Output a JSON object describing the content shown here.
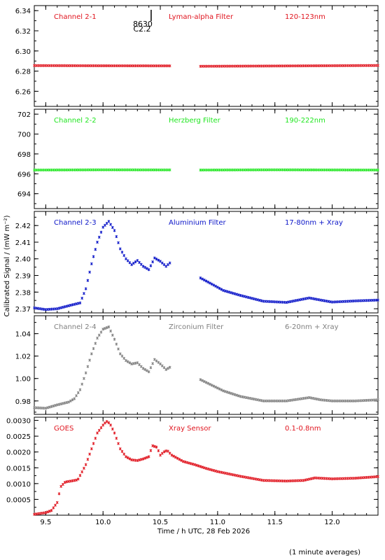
{
  "figure": {
    "ylabel": "Calibrated Signal / (mW m⁻²)",
    "xlabel": "Time / h UTC, 28 Feb 2026",
    "footnote": "(1 minute averages)",
    "xlim": [
      9.4,
      12.4
    ],
    "xticks": [
      9.5,
      10.0,
      10.5,
      11.0,
      11.5,
      12.0
    ],
    "xtick_labels": [
      "9.5",
      "10.0",
      "10.5",
      "11.0",
      "11.5",
      "12.0"
    ]
  },
  "flare_marker": {
    "x": 10.42,
    "label_1": "8630",
    "label_2": "C2.2",
    "color": "#000000"
  },
  "chart_data": [
    {
      "type": "scatter",
      "id": "ch21",
      "channel": "Channel 2-1",
      "filter": "Lyman-alpha Filter",
      "band": "120-123nm",
      "color": "#e0141e",
      "ylim": [
        6.245,
        6.345
      ],
      "yticks": [
        6.26,
        6.28,
        6.3,
        6.32,
        6.34
      ],
      "ytick_labels": [
        "6.26",
        "6.28",
        "6.30",
        "6.32",
        "6.34"
      ],
      "gap": [
        10.6,
        10.85
      ],
      "series": [
        {
          "x": [
            9.4,
            10.0,
            10.6,
            10.85,
            11.5,
            12.4
          ],
          "y": [
            6.2855,
            6.2853,
            6.2852,
            6.2848,
            6.2851,
            6.2856
          ]
        }
      ]
    },
    {
      "type": "scatter",
      "id": "ch22",
      "channel": "Channel 2-2",
      "filter": "Herzberg Filter",
      "band": "190-222nm",
      "color": "#1ee61e",
      "ylim": [
        692.5,
        702.5
      ],
      "yticks": [
        694,
        696,
        698,
        700,
        702
      ],
      "ytick_labels": [
        "694",
        "696",
        "698",
        "700",
        "702"
      ],
      "gap": [
        10.6,
        10.85
      ],
      "series": [
        {
          "x": [
            9.4,
            10.0,
            10.6,
            10.85,
            11.5,
            12.4
          ],
          "y": [
            696.38,
            696.4,
            696.39,
            696.38,
            696.4,
            696.38
          ]
        }
      ]
    },
    {
      "type": "scatter",
      "id": "ch23",
      "channel": "Channel 2-3",
      "filter": "Aluminium Filter",
      "band": "17-80nm + Xray",
      "color": "#0a14c8",
      "ylim": [
        2.3675,
        2.4285
      ],
      "yticks": [
        2.37,
        2.38,
        2.39,
        2.4,
        2.41,
        2.42
      ],
      "ytick_labels": [
        "2.37",
        "2.38",
        "2.39",
        "2.40",
        "2.41",
        "2.42"
      ],
      "gap": [
        10.6,
        10.85
      ],
      "series": [
        {
          "x": [
            9.4,
            9.5,
            9.6,
            9.7,
            9.8,
            9.85,
            9.9,
            9.95,
            10.0,
            10.05,
            10.1,
            10.15,
            10.2,
            10.25,
            10.3,
            10.35,
            10.4,
            10.45,
            10.5,
            10.55,
            10.6,
            10.85,
            10.95,
            11.05,
            11.2,
            11.4,
            11.6,
            11.8,
            11.9,
            12.0,
            12.2,
            12.4
          ],
          "y": [
            2.3705,
            2.3695,
            2.37,
            2.3718,
            2.3735,
            2.382,
            2.397,
            2.41,
            2.419,
            2.4225,
            2.417,
            2.406,
            2.4,
            2.3965,
            2.399,
            2.3955,
            2.3935,
            2.4005,
            2.3985,
            2.3955,
            2.3985,
            2.3885,
            2.3848,
            2.381,
            2.378,
            2.3745,
            2.3738,
            2.3765,
            2.3752,
            2.374,
            2.3747,
            2.3752
          ]
        }
      ]
    },
    {
      "type": "scatter",
      "id": "ch24",
      "channel": "Channel 2-4",
      "filter": "Zirconium Filter",
      "band": "6-20nm + Xray",
      "color": "#808080",
      "ylim": [
        0.968,
        1.056
      ],
      "yticks": [
        0.98,
        1.0,
        1.02,
        1.04
      ],
      "ytick_labels": [
        "0.98",
        "1.00",
        "1.02",
        "1.04"
      ],
      "gap": [
        10.6,
        10.85
      ],
      "series": [
        {
          "x": [
            9.4,
            9.5,
            9.6,
            9.7,
            9.75,
            9.8,
            9.85,
            9.9,
            9.95,
            10.0,
            10.05,
            10.1,
            10.15,
            10.2,
            10.25,
            10.3,
            10.35,
            10.4,
            10.45,
            10.5,
            10.55,
            10.6,
            10.85,
            10.95,
            11.05,
            11.2,
            11.4,
            11.6,
            11.8,
            11.9,
            12.0,
            12.2,
            12.4
          ],
          "y": [
            0.974,
            0.9735,
            0.9765,
            0.979,
            0.982,
            0.99,
            1.005,
            1.022,
            1.036,
            1.044,
            1.046,
            1.035,
            1.022,
            1.016,
            1.013,
            1.014,
            1.009,
            1.006,
            1.017,
            1.013,
            1.008,
            1.011,
            0.999,
            0.994,
            0.989,
            0.984,
            0.98,
            0.98,
            0.983,
            0.981,
            0.98,
            0.98,
            0.981
          ]
        }
      ]
    },
    {
      "type": "scatter",
      "id": "goes",
      "channel": "GOES",
      "filter": "Xray Sensor",
      "band": "0.1-0.8nm",
      "color": "#e0141e",
      "ylim": [
        0.0,
        0.0031
      ],
      "yticks": [
        0.0005,
        0.001,
        0.0015,
        0.002,
        0.0025,
        0.003
      ],
      "ytick_labels": [
        "0.0005",
        "0.0010",
        "0.0015",
        "0.0020",
        "0.0025",
        "0.0030"
      ],
      "gap": null,
      "series": [
        {
          "x": [
            9.4,
            9.5,
            9.55,
            9.6,
            9.63,
            9.67,
            9.72,
            9.78,
            9.85,
            9.9,
            9.95,
            10.0,
            10.03,
            10.06,
            10.1,
            10.15,
            10.2,
            10.25,
            10.3,
            10.35,
            10.4,
            10.43,
            10.47,
            10.5,
            10.53,
            10.56,
            10.6,
            10.7,
            10.8,
            10.9,
            11.0,
            11.2,
            11.4,
            11.6,
            11.75,
            11.85,
            12.0,
            12.2,
            12.4
          ],
          "y": [
            3e-05,
            8e-05,
            0.00015,
            0.0004,
            0.0009,
            0.00105,
            0.00108,
            0.00112,
            0.0016,
            0.0021,
            0.0026,
            0.00285,
            0.00297,
            0.0029,
            0.0026,
            0.0021,
            0.00185,
            0.00175,
            0.00173,
            0.00178,
            0.00185,
            0.0022,
            0.00215,
            0.0019,
            0.002,
            0.00205,
            0.0019,
            0.0017,
            0.0016,
            0.00148,
            0.00138,
            0.00123,
            0.0011,
            0.00108,
            0.0011,
            0.00118,
            0.00115,
            0.00117,
            0.00122
          ]
        }
      ]
    }
  ]
}
